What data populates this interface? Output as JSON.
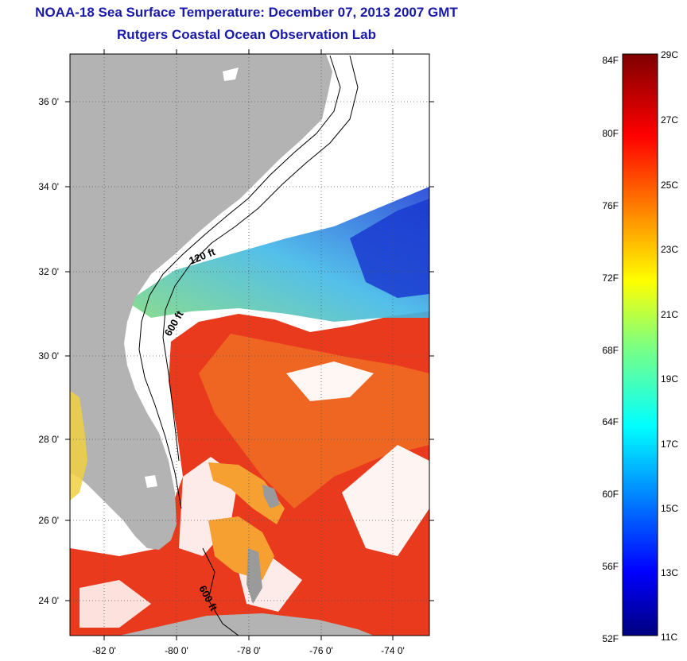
{
  "header": {
    "title": "NOAA-18 Sea Surface Temperature:  December 07, 2013 2007 GMT",
    "subtitle": "Rutgers Coastal Ocean Observation Lab"
  },
  "map": {
    "lat_labels": [
      "36 0'",
      "34 0'",
      "32 0'",
      "30 0'",
      "28 0'",
      "26 0'",
      "24 0'"
    ],
    "lon_labels": [
      "-82 0'",
      "-80 0'",
      "-78 0'",
      "-76 0'",
      "-74 0'"
    ],
    "contour_labels": [
      "120 ft",
      "600 ft",
      "600 ft"
    ],
    "colors": {
      "land": "#b3b3b3",
      "cloud": "#ffffff",
      "warm": "#e8321e",
      "orange": "#f06a22",
      "cool": "#2d7de8"
    }
  },
  "colorbar": {
    "fahrenheit_labels": [
      "84F",
      "80F",
      "76F",
      "72F",
      "68F",
      "64F",
      "60F",
      "56F",
      "52F"
    ],
    "celsius_labels": [
      "29C",
      "27C",
      "25C",
      "23C",
      "21C",
      "19C",
      "17C",
      "15C",
      "13C",
      "11C"
    ]
  }
}
